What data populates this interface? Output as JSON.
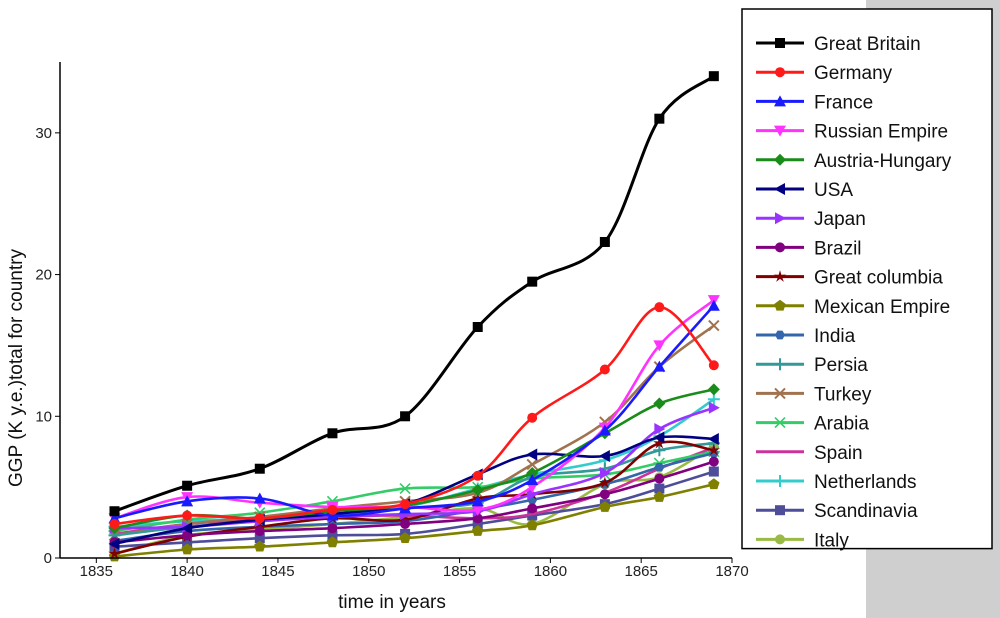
{
  "chart_data": {
    "type": "line",
    "title": "",
    "xlabel": "time in years",
    "ylabel": "GGP (K y.e.)total for country",
    "xlim": [
      1833,
      1870
    ],
    "ylim": [
      0,
      35
    ],
    "x_ticks": [
      1835,
      1840,
      1845,
      1850,
      1855,
      1860,
      1865,
      1870
    ],
    "y_ticks": [
      0,
      10,
      20,
      30
    ],
    "x": [
      1836,
      1840,
      1844,
      1848,
      1852,
      1856,
      1859,
      1863,
      1866,
      1869
    ],
    "series": [
      {
        "name": "Great Britain",
        "color": "#000000",
        "marker": "square",
        "values": [
          3.3,
          5.1,
          6.3,
          8.8,
          10.0,
          16.3,
          19.5,
          22.3,
          31.0,
          34.0
        ]
      },
      {
        "name": "Germany",
        "color": "#ff1a1a",
        "marker": "circle",
        "values": [
          2.4,
          3.0,
          2.8,
          3.4,
          3.8,
          5.8,
          9.9,
          13.3,
          17.7,
          13.6
        ]
      },
      {
        "name": "France",
        "color": "#1a1aff",
        "marker": "triangle-up",
        "values": [
          2.8,
          4.0,
          4.2,
          3.0,
          3.5,
          4.0,
          5.5,
          9.0,
          13.5,
          17.8
        ]
      },
      {
        "name": "Russian Empire",
        "color": "#ff33ff",
        "marker": "triangle-down",
        "values": [
          2.8,
          4.3,
          3.9,
          3.6,
          3.6,
          3.4,
          5.0,
          9.2,
          15.0,
          18.2
        ]
      },
      {
        "name": "Austria-Hungary",
        "color": "#1a8c1a",
        "marker": "diamond",
        "values": [
          2.1,
          3.0,
          2.8,
          3.3,
          3.7,
          4.8,
          6.0,
          8.8,
          10.9,
          11.9
        ]
      },
      {
        "name": "USA",
        "color": "#000080",
        "marker": "triangle-left",
        "values": [
          1.0,
          2.1,
          2.7,
          3.1,
          3.8,
          5.9,
          7.3,
          7.2,
          8.5,
          8.4
        ]
      },
      {
        "name": "Japan",
        "color": "#9933ff",
        "marker": "triangle-right",
        "values": [
          2.1,
          2.2,
          2.6,
          2.9,
          3.1,
          3.3,
          4.5,
          6.0,
          9.1,
          10.6
        ]
      },
      {
        "name": "Brazil",
        "color": "#800080",
        "marker": "circle",
        "values": [
          1.1,
          1.6,
          1.9,
          2.1,
          2.4,
          2.8,
          3.5,
          4.5,
          5.6,
          6.8
        ]
      },
      {
        "name": "Great columbia",
        "color": "#800000",
        "marker": "star",
        "values": [
          0.3,
          1.5,
          2.2,
          2.8,
          2.7,
          4.2,
          4.5,
          5.3,
          8.1,
          7.6
        ]
      },
      {
        "name": "Mexican Empire",
        "color": "#808000",
        "marker": "pentagon",
        "values": [
          0.1,
          0.6,
          0.8,
          1.1,
          1.4,
          1.9,
          2.3,
          3.6,
          4.3,
          5.2
        ]
      },
      {
        "name": "India",
        "color": "#3366aa",
        "marker": "hexagon",
        "values": [
          1.2,
          1.9,
          2.2,
          2.4,
          2.6,
          3.4,
          4.1,
          5.2,
          6.4,
          7.4
        ]
      },
      {
        "name": "Persia",
        "color": "#339999",
        "marker": "plus",
        "values": [
          1.6,
          2.2,
          2.6,
          3.0,
          3.5,
          3.9,
          5.7,
          6.3,
          7.6,
          8.1
        ]
      },
      {
        "name": "Turkey",
        "color": "#a0724f",
        "marker": "x",
        "values": [
          1.6,
          2.4,
          2.9,
          3.5,
          4.0,
          4.6,
          6.6,
          9.6,
          13.5,
          16.4
        ]
      },
      {
        "name": "Arabia",
        "color": "#33cc66",
        "marker": "asterisk",
        "values": [
          1.9,
          2.7,
          3.2,
          4.0,
          4.9,
          5.0,
          5.6,
          5.9,
          6.7,
          7.5
        ]
      },
      {
        "name": "Spain",
        "color": "#cc3399",
        "marker": "line",
        "values": [
          1.7,
          2.4,
          2.7,
          2.9,
          3.0,
          2.8,
          3.1,
          4.6,
          6.3,
          7.8
        ]
      },
      {
        "name": "Netherlands",
        "color": "#33cccc",
        "marker": "plus",
        "values": [
          2.2,
          2.6,
          2.8,
          3.1,
          3.6,
          4.9,
          5.9,
          6.9,
          8.6,
          11.2
        ]
      },
      {
        "name": "Scandinavia",
        "color": "#4d4d99",
        "marker": "square",
        "values": [
          0.8,
          1.1,
          1.4,
          1.6,
          1.7,
          2.4,
          3.0,
          3.8,
          4.9,
          6.1
        ]
      },
      {
        "name": "Italy",
        "color": "#99bb44",
        "marker": "circle",
        "values": [
          0.3,
          1.6,
          2.0,
          2.4,
          2.9,
          3.5,
          2.4,
          5.2,
          5.7,
          7.9
        ]
      }
    ]
  }
}
